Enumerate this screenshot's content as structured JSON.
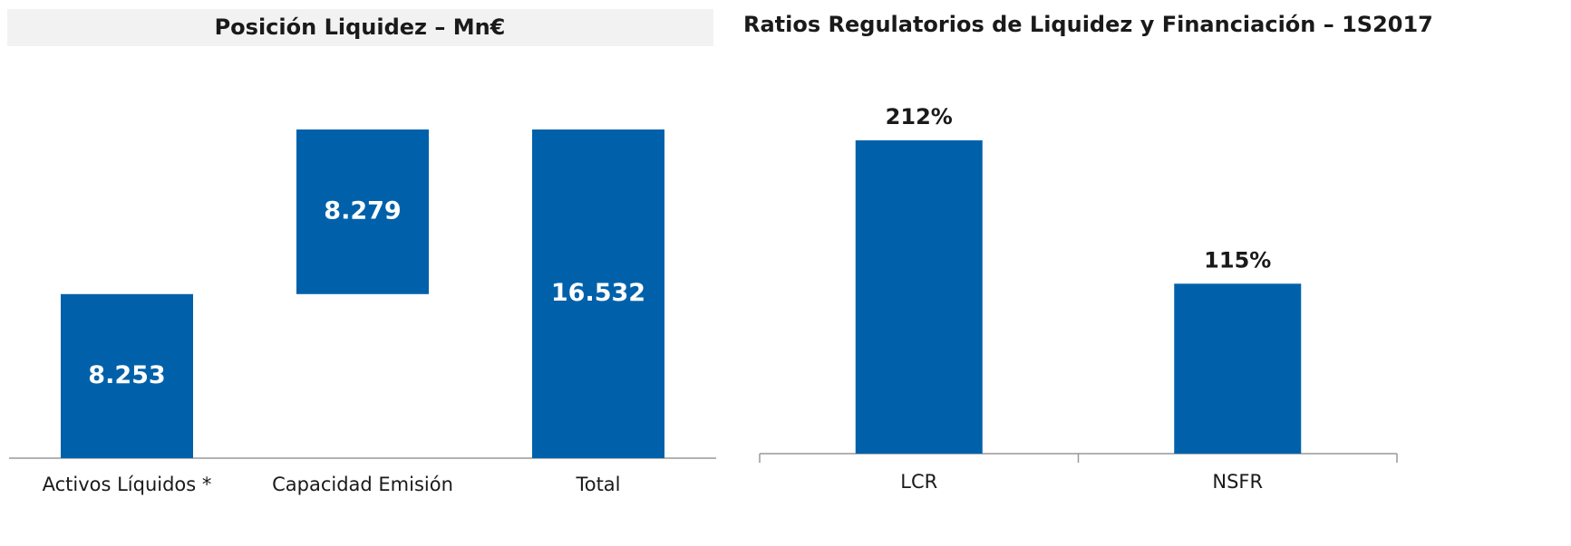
{
  "chart_data": [
    {
      "type": "waterfall",
      "title": "Posición Liquidez – Mn€",
      "categories": [
        "Activos Líquidos *",
        "Capacidad Emisión",
        "Total"
      ],
      "values": [
        8253,
        8279,
        16532
      ],
      "value_labels": [
        "8.253",
        "8.279",
        "16.532"
      ],
      "color": "#0061aa"
    },
    {
      "type": "bar",
      "title": "Ratios Regulatorios de Liquidez y Financiación – 1S2017",
      "categories": [
        "LCR",
        "NSFR"
      ],
      "values": [
        212,
        115
      ],
      "value_labels": [
        "212%",
        "115%"
      ],
      "color": "#0061aa"
    }
  ]
}
